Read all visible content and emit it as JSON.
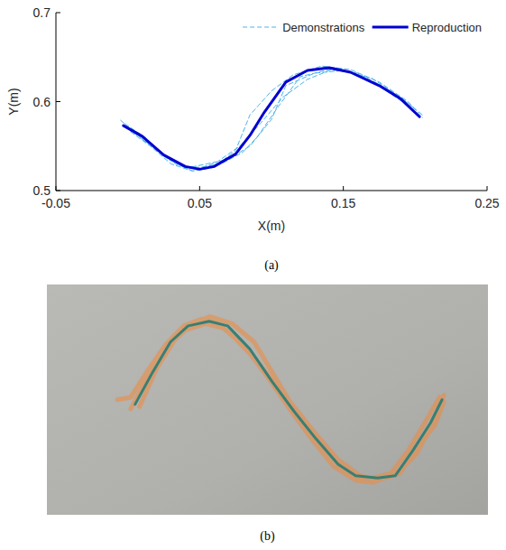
{
  "chart_data": [
    {
      "type": "line",
      "caption": "(a)",
      "x_label": "X(m)",
      "y_label": "Y(m)",
      "xlim": [
        -0.05,
        0.25
      ],
      "xticks": [
        -0.05,
        0.05,
        0.15,
        0.25
      ],
      "ylim": [
        0.5,
        0.7
      ],
      "yticks": [
        0.5,
        0.6,
        0.7
      ],
      "legend": "upper right",
      "grid": false,
      "series": [
        {
          "name": "Demonstrations",
          "color": "#4db3ea",
          "line_style": "dashed",
          "x": [
            -0.005,
            0.01,
            0.03,
            0.045,
            0.06,
            0.075,
            0.085,
            0.1,
            0.115,
            0.135,
            0.155,
            0.175,
            0.195,
            0.205,
            null,
            0,
            0.015,
            0.035,
            0.05,
            0.065,
            0.08,
            0.09,
            0.105,
            0.12,
            0.14,
            0.16,
            0.18,
            0.2,
            null,
            0.002,
            0.02,
            0.04,
            0.055,
            0.07,
            0.085,
            0.1,
            0.11,
            0.13,
            0.15,
            0.17,
            0.19,
            0.205,
            null,
            -0.002,
            0.012,
            0.028,
            0.045,
            0.062,
            0.078,
            0.092,
            0.108,
            0.125,
            0.145,
            0.165,
            0.185,
            0.2
          ],
          "values": [
            0.579,
            0.558,
            0.53,
            0.522,
            0.526,
            0.545,
            0.585,
            0.612,
            0.63,
            0.64,
            0.636,
            0.622,
            0.6,
            0.582,
            null,
            0.57,
            0.552,
            0.528,
            0.526,
            0.53,
            0.543,
            0.56,
            0.595,
            0.628,
            0.636,
            0.632,
            0.612,
            0.59,
            null,
            0.566,
            0.545,
            0.525,
            0.53,
            0.535,
            0.55,
            0.58,
            0.618,
            0.632,
            0.635,
            0.626,
            0.605,
            0.585,
            null,
            0.575,
            0.56,
            0.535,
            0.522,
            0.532,
            0.55,
            0.575,
            0.605,
            0.625,
            0.638,
            0.628,
            0.61,
            0.592
          ]
        },
        {
          "name": "Reproduction",
          "color": "#0000d0",
          "line_style": "solid",
          "x": [
            -0.003,
            0.01,
            0.025,
            0.04,
            0.05,
            0.06,
            0.075,
            0.085,
            0.095,
            0.11,
            0.125,
            0.14,
            0.155,
            0.175,
            0.19,
            0.203
          ],
          "values": [
            0.573,
            0.561,
            0.54,
            0.527,
            0.524,
            0.527,
            0.541,
            0.562,
            0.588,
            0.622,
            0.635,
            0.638,
            0.633,
            0.618,
            0.603,
            0.583
          ]
        }
      ]
    },
    {
      "type": "photo",
      "caption": "(b)",
      "tick_labels": false,
      "xlim": [
        0,
        100
      ],
      "ylim": [
        0,
        100
      ],
      "series": [
        {
          "color": "#f0883a",
          "line_style": "solid",
          "x": [
            16,
            19,
            23,
            27,
            31,
            35,
            38,
            42,
            46,
            50,
            55,
            60,
            65,
            70,
            74,
            78,
            82,
            86,
            89,
            null,
            19,
            23,
            27,
            31,
            36,
            40,
            45,
            50,
            56,
            61,
            66,
            71,
            75,
            80,
            84,
            88,
            90,
            null,
            21,
            25,
            29,
            33,
            37,
            42,
            47,
            52,
            57,
            62,
            67,
            71,
            76,
            80,
            84,
            88,
            90
          ],
          "values": [
            50,
            51,
            63,
            74,
            82,
            85,
            84,
            78,
            70,
            60,
            46,
            33,
            21,
            15,
            14,
            18,
            28,
            41,
            51,
            null,
            46,
            60,
            72,
            80,
            83,
            81,
            73,
            61,
            47,
            35,
            24,
            17,
            15,
            18,
            29,
            39,
            49,
            null,
            47,
            64,
            76,
            83,
            86,
            83,
            75,
            59,
            43,
            31,
            20,
            15,
            17,
            19,
            27,
            42,
            52
          ]
        },
        {
          "color": "#2f7d74",
          "line_style": "solid",
          "x": [
            20,
            24,
            28,
            32,
            36.8,
            41,
            46,
            51,
            56,
            61,
            66,
            70,
            75,
            79,
            83,
            87,
            89.6
          ],
          "values": [
            48,
            62,
            75,
            82,
            84,
            82,
            72,
            58,
            45,
            33,
            22,
            17,
            16,
            17,
            28,
            40,
            50
          ]
        }
      ]
    }
  ]
}
